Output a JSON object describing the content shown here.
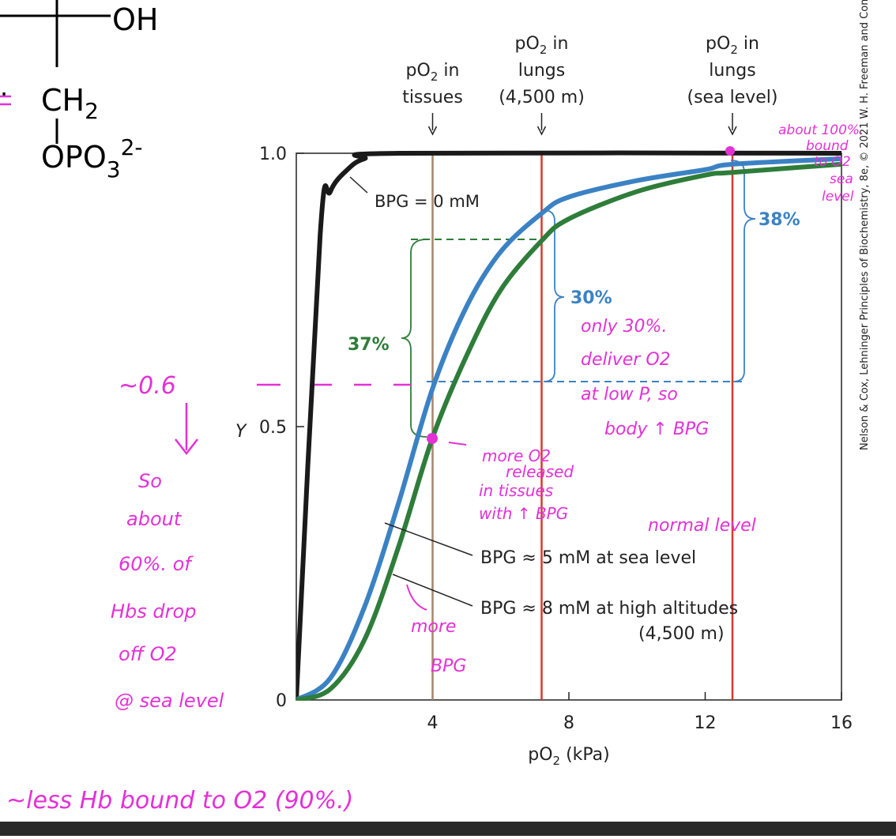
{
  "structure": {
    "oh": "OH",
    "ch2": "CH",
    "ch2_sub": "2",
    "opo3": "OPO",
    "opo3_sub": "3",
    "opo3_sup": "2-"
  },
  "credit": "Nelson & Cox, Lehninger Principles of Biochemistry, 8e, © 2021 W. H. Freeman and Company",
  "chart_data": {
    "type": "line",
    "xlabel": "pO2 (kPa)",
    "ylabel": "Y",
    "xlim": [
      0,
      16
    ],
    "ylim": [
      0,
      1.0
    ],
    "x_ticks": [
      "4",
      "8",
      "12",
      "16"
    ],
    "y_ticks": [
      "0",
      "0.5",
      "1.0"
    ],
    "series": [
      {
        "name": "BPG = 0 mM",
        "color": "#1a1a1a",
        "points": [
          [
            0,
            0
          ],
          [
            0.7,
            0.85
          ],
          [
            1.0,
            0.93
          ],
          [
            1.5,
            0.97
          ],
          [
            2.0,
            0.99
          ],
          [
            3.0,
            1.0
          ],
          [
            16,
            1.0
          ]
        ]
      },
      {
        "name": "BPG ≈ 5 mM at sea level",
        "color": "#3b82c4",
        "points": [
          [
            0,
            0
          ],
          [
            1,
            0.04
          ],
          [
            2,
            0.17
          ],
          [
            3,
            0.36
          ],
          [
            4,
            0.57
          ],
          [
            5,
            0.72
          ],
          [
            6,
            0.82
          ],
          [
            7.2,
            0.89
          ],
          [
            8,
            0.92
          ],
          [
            10,
            0.95
          ],
          [
            12,
            0.97
          ],
          [
            12.8,
            0.98
          ],
          [
            16,
            0.99
          ]
        ]
      },
      {
        "name": "BPG ≈ 8 mM at high altitudes (4,500 m)",
        "color": "#2e7d3a",
        "points": [
          [
            0,
            0
          ],
          [
            1,
            0.02
          ],
          [
            2,
            0.11
          ],
          [
            3,
            0.28
          ],
          [
            4,
            0.48
          ],
          [
            5,
            0.63
          ],
          [
            6,
            0.75
          ],
          [
            7.2,
            0.84
          ],
          [
            8,
            0.88
          ],
          [
            10,
            0.93
          ],
          [
            12,
            0.96
          ],
          [
            12.8,
            0.965
          ],
          [
            16,
            0.98
          ]
        ]
      }
    ],
    "reference_lines": [
      {
        "x": 4.0,
        "color": "#a8866a",
        "label_lines": [
          "pO2 in",
          "tissues"
        ]
      },
      {
        "x": 7.2,
        "color": "#d63a2e",
        "label_lines": [
          "pO2 in",
          "lungs",
          "(4,500 m)"
        ]
      },
      {
        "x": 12.8,
        "color": "#d63a2e",
        "label_lines": [
          "pO2 in",
          "lungs",
          "(sea level)"
        ]
      }
    ],
    "annotations": {
      "bpg0": "BPG = 0 mM",
      "bpg5": "BPG ≈ 5 mM at sea level",
      "bpg8_line1": "BPG ≈ 8 mM at high altitudes",
      "bpg8_line2": "(4,500 m)",
      "pct37": "37%",
      "pct30": "30%",
      "pct38": "38%"
    }
  },
  "handwriting": {
    "approx06": "~0.6",
    "so_about": [
      "So",
      "about",
      "60%. of",
      "Hbs drop",
      "off O2",
      "@ sea level"
    ],
    "bottom": "~less Hb bound to O2 (90%.)",
    "top_right": [
      "about 100%.",
      "bound",
      "to O2",
      "sea",
      "level"
    ],
    "only30": [
      "only 30%.",
      "deliver O2",
      "at low P, so",
      "body ↑ BPG"
    ],
    "more_o2": [
      "more O2",
      "released",
      "in tissues",
      "with ↑ BPG"
    ],
    "normal_level": "normal level",
    "more_bpg": [
      "more",
      "BPG"
    ]
  }
}
